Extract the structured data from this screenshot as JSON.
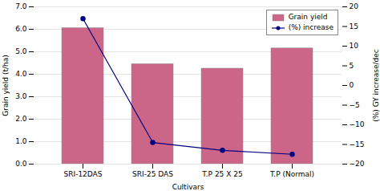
{
  "chart_data": {
    "type": "bar",
    "xlabel": "Cultivars",
    "ylabel": "Grain yield (t/ha)",
    "y2label": "(%) GY increase/dec",
    "categories": [
      "SRI-12DAS",
      "SRI-25 DAS",
      "T.P 25 X 25",
      "T.P (Normal)"
    ],
    "series": [
      {
        "name": "Grain yield",
        "type": "bar",
        "color": "#cc6688",
        "values": [
          6.05,
          4.45,
          4.25,
          5.15
        ]
      },
      {
        "name": "(%) increase",
        "type": "line",
        "axis": "y2",
        "color": "#000080",
        "marker": "circle",
        "line_style": "solid",
        "values": [
          17.0,
          -14.5,
          -16.5,
          -17.5
        ]
      }
    ],
    "ylim": [
      0,
      7
    ],
    "yticks": [
      0,
      1,
      2,
      3,
      4,
      5,
      6,
      7
    ],
    "y2lim": [
      -20,
      20
    ],
    "y2ticks": [
      -20,
      -15,
      -10,
      -5,
      0,
      5,
      10,
      15,
      20
    ],
    "grid": true,
    "legend": "upper right"
  }
}
